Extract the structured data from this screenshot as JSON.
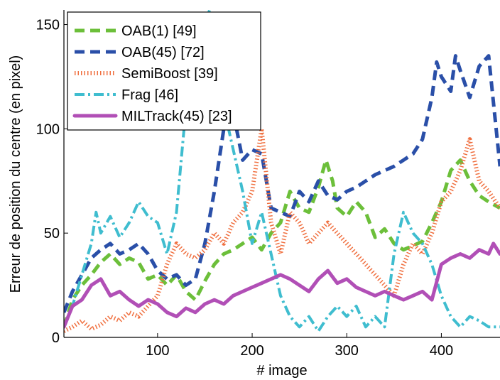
{
  "chart_data": {
    "type": "line",
    "xlabel": "# image",
    "ylabel": "Erreur de position du centre (en pixel)",
    "xlim": [
      1,
      462
    ],
    "ylim": [
      0,
      157
    ],
    "xticks": [
      100,
      200,
      300,
      400
    ],
    "yticks": [
      0,
      50,
      100,
      150
    ],
    "grid": false,
    "legend_position": "top-left",
    "series": [
      {
        "name": "OAB(1) [49]",
        "color": "#6cbf3a",
        "style": "dashed",
        "x": [
          1,
          10,
          20,
          30,
          40,
          50,
          60,
          70,
          80,
          90,
          100,
          110,
          120,
          130,
          140,
          150,
          160,
          170,
          180,
          190,
          200,
          210,
          220,
          230,
          240,
          250,
          260,
          270,
          278,
          285,
          290,
          300,
          310,
          320,
          330,
          340,
          350,
          360,
          370,
          380,
          390,
          400,
          410,
          420,
          430,
          440,
          450,
          462
        ],
        "y": [
          5,
          18,
          25,
          30,
          36,
          40,
          35,
          38,
          36,
          28,
          30,
          25,
          30,
          22,
          18,
          27,
          35,
          40,
          42,
          45,
          48,
          42,
          50,
          55,
          70,
          62,
          60,
          72,
          85,
          75,
          62,
          58,
          65,
          60,
          48,
          52,
          45,
          42,
          44,
          46,
          55,
          65,
          80,
          85,
          75,
          68,
          65,
          62
        ]
      },
      {
        "name": "OAB(45) [72]",
        "color": "#2a4fa8",
        "style": "dashed",
        "x": [
          1,
          10,
          20,
          30,
          40,
          50,
          60,
          70,
          80,
          90,
          100,
          110,
          120,
          130,
          140,
          150,
          160,
          170,
          180,
          190,
          200,
          210,
          220,
          230,
          240,
          250,
          260,
          270,
          280,
          290,
          300,
          310,
          320,
          330,
          340,
          350,
          360,
          370,
          380,
          390,
          395,
          400,
          410,
          415,
          420,
          430,
          440,
          450,
          462
        ],
        "y": [
          12,
          22,
          30,
          38,
          42,
          45,
          40,
          42,
          45,
          40,
          32,
          28,
          30,
          25,
          28,
          45,
          70,
          100,
          108,
          85,
          90,
          88,
          62,
          60,
          58,
          70,
          65,
          75,
          68,
          66,
          70,
          72,
          75,
          78,
          80,
          82,
          85,
          88,
          95,
          115,
          132,
          125,
          118,
          135,
          128,
          115,
          130,
          135,
          82
        ]
      },
      {
        "name": "SemiBoost [39]",
        "color": "#f07040",
        "style": "dotted",
        "x": [
          1,
          10,
          20,
          30,
          40,
          50,
          60,
          70,
          80,
          90,
          100,
          110,
          120,
          130,
          140,
          150,
          160,
          170,
          180,
          190,
          200,
          210,
          220,
          230,
          240,
          250,
          260,
          270,
          280,
          290,
          300,
          310,
          320,
          330,
          340,
          350,
          360,
          370,
          380,
          390,
          400,
          410,
          420,
          430,
          440,
          450,
          462
        ],
        "y": [
          3,
          5,
          8,
          4,
          6,
          10,
          8,
          12,
          10,
          15,
          20,
          35,
          45,
          40,
          38,
          42,
          50,
          45,
          55,
          60,
          70,
          100,
          55,
          40,
          60,
          55,
          45,
          50,
          55,
          50,
          45,
          40,
          35,
          30,
          25,
          20,
          35,
          45,
          40,
          50,
          65,
          70,
          80,
          95,
          75,
          70,
          62
        ]
      },
      {
        "name": "Frag [46]",
        "color": "#3fbdcf",
        "style": "dashdot",
        "x": [
          1,
          10,
          20,
          30,
          35,
          40,
          50,
          60,
          70,
          80,
          90,
          100,
          110,
          120,
          130,
          140,
          150,
          155,
          160,
          170,
          180,
          190,
          200,
          210,
          220,
          230,
          240,
          250,
          260,
          270,
          280,
          290,
          300,
          310,
          320,
          330,
          340,
          350,
          360,
          370,
          380,
          390,
          400,
          410,
          420,
          430,
          440,
          450,
          462
        ],
        "y": [
          5,
          15,
          30,
          45,
          60,
          50,
          58,
          48,
          55,
          65,
          58,
          55,
          40,
          60,
          110,
          140,
          150,
          157,
          130,
          110,
          90,
          70,
          45,
          60,
          40,
          20,
          10,
          5,
          10,
          3,
          10,
          15,
          10,
          15,
          5,
          10,
          5,
          40,
          60,
          50,
          45,
          35,
          20,
          10,
          5,
          10,
          8,
          5,
          5
        ]
      },
      {
        "name": "MILTrack(45) [23]",
        "color": "#b14fb6",
        "style": "solid",
        "x": [
          1,
          10,
          20,
          30,
          40,
          50,
          60,
          70,
          80,
          90,
          100,
          110,
          120,
          130,
          140,
          150,
          160,
          170,
          180,
          190,
          200,
          210,
          220,
          230,
          240,
          250,
          260,
          270,
          280,
          290,
          300,
          310,
          320,
          330,
          340,
          350,
          360,
          370,
          380,
          390,
          400,
          410,
          420,
          430,
          440,
          450,
          455,
          462
        ],
        "y": [
          5,
          15,
          18,
          25,
          28,
          20,
          22,
          18,
          15,
          18,
          16,
          12,
          10,
          14,
          12,
          16,
          18,
          16,
          20,
          22,
          24,
          26,
          28,
          30,
          28,
          25,
          22,
          28,
          32,
          26,
          28,
          24,
          22,
          20,
          22,
          20,
          18,
          20,
          22,
          18,
          35,
          38,
          40,
          38,
          42,
          40,
          45,
          40
        ]
      }
    ]
  }
}
